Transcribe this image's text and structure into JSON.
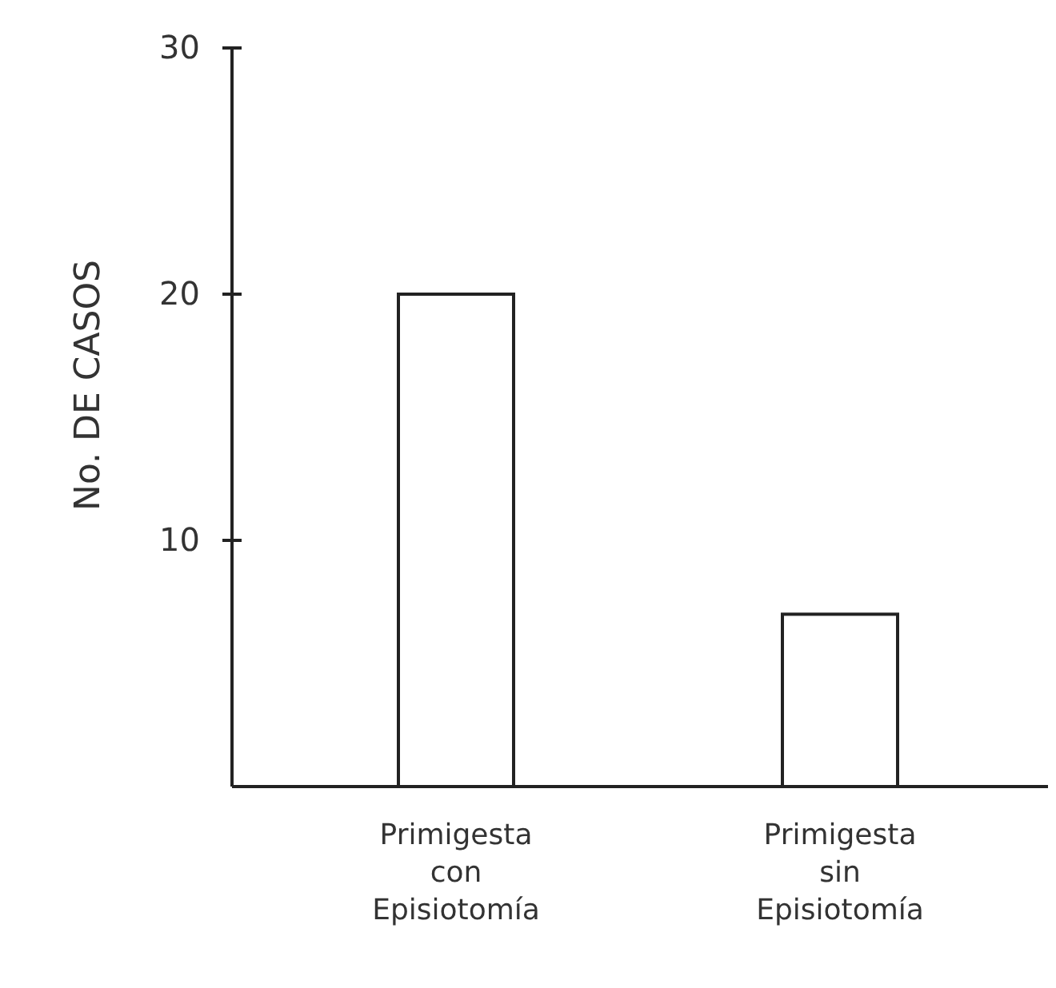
{
  "chart_data": {
    "type": "bar",
    "ylabel": "No. DE CASOS",
    "categories": [
      "Primigesta\ncon\nEpisiotomía",
      "Primigesta\nsin\nEpisiotomía"
    ],
    "values": [
      20,
      7
    ],
    "color": "#222222",
    "ylim": [
      0,
      30
    ],
    "yticks": [
      10,
      20,
      30
    ],
    "grid": false
  }
}
